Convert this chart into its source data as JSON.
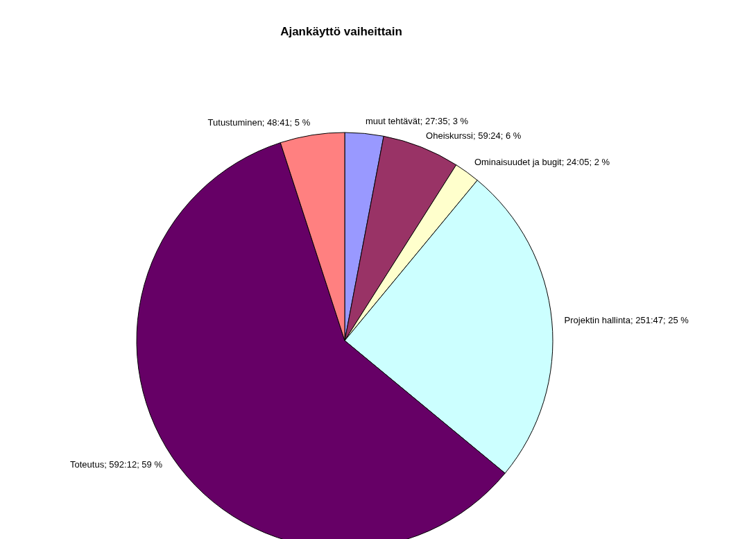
{
  "chart_data": {
    "type": "pie",
    "title": "Ajankäyttö vaiheittain",
    "categories": [
      "muut tehtävät",
      "Oheiskurssi",
      "Ominaisuudet ja bugit",
      "Projektin hallinta",
      "Toteutus",
      "Tutustuminen"
    ],
    "values": [
      3,
      6,
      2,
      25,
      59,
      5
    ],
    "value_labels": [
      "27:35; 3 %",
      "59:24; 6 %",
      "24:05; 2 %",
      "251:47; 25 %",
      "592:12; 59 %",
      "48:41; 5 %"
    ],
    "colors": [
      "#9999ff",
      "#993366",
      "#ffffcc",
      "#ccffff",
      "#660066",
      "#ff8080"
    ]
  }
}
